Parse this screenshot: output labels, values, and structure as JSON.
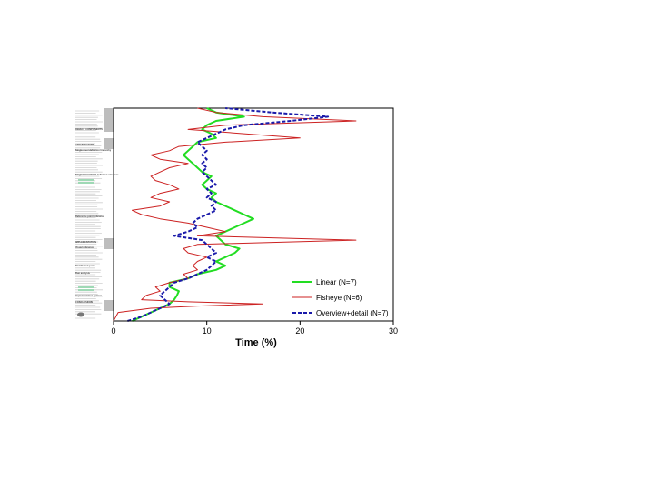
{
  "chart_data": {
    "type": "line",
    "title": "",
    "xlabel": "Time (%)",
    "ylabel": "",
    "xlim": [
      0,
      30
    ],
    "ylim": [
      0,
      100
    ],
    "x_ticks": [
      "0",
      "10",
      "20",
      "30"
    ],
    "orientation": "horizontal-profile",
    "grid": false,
    "legend": {
      "placement": "bottom-right",
      "entries": [
        "Linear (N=7)",
        "Fisheye (N=6)",
        "Overview+detail (N=7)"
      ]
    },
    "series": [
      {
        "name": "Linear (N=7)",
        "color": "#22dd22",
        "dash": "solid",
        "points": [
          [
            2,
            0
          ],
          [
            3,
            2
          ],
          [
            4,
            4
          ],
          [
            5,
            6
          ],
          [
            6,
            8
          ],
          [
            6.5,
            10
          ],
          [
            6.8,
            12
          ],
          [
            7,
            14
          ],
          [
            6,
            16
          ],
          [
            6,
            18
          ],
          [
            8,
            20
          ],
          [
            9,
            22
          ],
          [
            11,
            24
          ],
          [
            12,
            26
          ],
          [
            11,
            28
          ],
          [
            12,
            30
          ],
          [
            13,
            32
          ],
          [
            13.5,
            34
          ],
          [
            12,
            36
          ],
          [
            11.5,
            38
          ],
          [
            11,
            40
          ],
          [
            12,
            42
          ],
          [
            13,
            44
          ],
          [
            14,
            46
          ],
          [
            15,
            48
          ],
          [
            14,
            50
          ],
          [
            13,
            52
          ],
          [
            12,
            54
          ],
          [
            11,
            56
          ],
          [
            10.5,
            58
          ],
          [
            11,
            60
          ],
          [
            10,
            62
          ],
          [
            9.5,
            64
          ],
          [
            10,
            66
          ],
          [
            10.5,
            68
          ],
          [
            9.5,
            70
          ],
          [
            9,
            72
          ],
          [
            8.5,
            74
          ],
          [
            8,
            76
          ],
          [
            7.5,
            78
          ],
          [
            8,
            80
          ],
          [
            8.5,
            82
          ],
          [
            9,
            84
          ],
          [
            11,
            86
          ],
          [
            10.5,
            88
          ],
          [
            9.5,
            90
          ],
          [
            10,
            92
          ],
          [
            11,
            94
          ],
          [
            14,
            96
          ],
          [
            11,
            98
          ],
          [
            10,
            100
          ]
        ]
      },
      {
        "name": "Fisheye (N=6)",
        "color": "#cc2222",
        "dash": "solid",
        "points": [
          [
            0,
            0
          ],
          [
            0.5,
            4
          ],
          [
            4,
            6
          ],
          [
            9,
            7
          ],
          [
            16,
            8
          ],
          [
            8,
            9
          ],
          [
            3,
            10
          ],
          [
            3.5,
            12
          ],
          [
            5,
            14
          ],
          [
            4.5,
            16
          ],
          [
            6,
            18
          ],
          [
            8,
            20
          ],
          [
            7.5,
            22
          ],
          [
            9,
            24
          ],
          [
            8.5,
            26
          ],
          [
            9,
            28
          ],
          [
            10,
            30
          ],
          [
            8,
            32
          ],
          [
            7.5,
            34
          ],
          [
            9,
            36
          ],
          [
            26,
            38
          ],
          [
            9,
            40
          ],
          [
            12,
            42
          ],
          [
            10,
            44
          ],
          [
            8,
            46
          ],
          [
            5,
            48
          ],
          [
            3,
            50
          ],
          [
            2,
            52
          ],
          [
            5,
            54
          ],
          [
            6,
            56
          ],
          [
            4,
            58
          ],
          [
            5,
            60
          ],
          [
            7,
            62
          ],
          [
            6,
            64
          ],
          [
            4.5,
            66
          ],
          [
            4,
            68
          ],
          [
            5,
            70
          ],
          [
            6,
            72
          ],
          [
            8,
            74
          ],
          [
            5,
            76
          ],
          [
            4,
            78
          ],
          [
            6,
            80
          ],
          [
            7,
            82
          ],
          [
            12,
            84
          ],
          [
            20,
            86
          ],
          [
            14,
            88
          ],
          [
            8,
            90
          ],
          [
            12,
            92
          ],
          [
            26,
            94
          ],
          [
            16,
            96
          ],
          [
            11,
            98
          ],
          [
            9,
            100
          ]
        ]
      },
      {
        "name": "Overview+detail (N=7)",
        "color": "#1a1aaa",
        "dash": "dashed",
        "points": [
          [
            1.5,
            0
          ],
          [
            3,
            2
          ],
          [
            4,
            4
          ],
          [
            5,
            6
          ],
          [
            6,
            8
          ],
          [
            5.5,
            10
          ],
          [
            5,
            12
          ],
          [
            5.5,
            14
          ],
          [
            6,
            16
          ],
          [
            6.5,
            18
          ],
          [
            8,
            20
          ],
          [
            9,
            22
          ],
          [
            10,
            24
          ],
          [
            10.5,
            26
          ],
          [
            11,
            28
          ],
          [
            10,
            30
          ],
          [
            11,
            32
          ],
          [
            10.5,
            34
          ],
          [
            10,
            36
          ],
          [
            9.5,
            38
          ],
          [
            6.5,
            40
          ],
          [
            8,
            42
          ],
          [
            9,
            44
          ],
          [
            8.5,
            46
          ],
          [
            9,
            48
          ],
          [
            10,
            50
          ],
          [
            11,
            52
          ],
          [
            10.5,
            54
          ],
          [
            11,
            56
          ],
          [
            10,
            58
          ],
          [
            10.5,
            60
          ],
          [
            10,
            62
          ],
          [
            11,
            64
          ],
          [
            10.5,
            66
          ],
          [
            10,
            68
          ],
          [
            9.5,
            70
          ],
          [
            10,
            72
          ],
          [
            9.5,
            74
          ],
          [
            10,
            76
          ],
          [
            9.5,
            78
          ],
          [
            10,
            80
          ],
          [
            9.5,
            82
          ],
          [
            9,
            84
          ],
          [
            10,
            86
          ],
          [
            11,
            88
          ],
          [
            12,
            90
          ],
          [
            14,
            92
          ],
          [
            19,
            94
          ],
          [
            23,
            96
          ],
          [
            17,
            98
          ],
          [
            12,
            100
          ]
        ]
      }
    ]
  },
  "document_strip": {
    "headings": [
      "OBJECT COMPONENTS",
      "ARCHITECTURE",
      "Single-level definition hierarchy",
      "Single hierarchical definition structure",
      "Reference point reference",
      "IMPLEMENTATION",
      "Visual reference",
      "Distributed query",
      "Run analysis",
      "Implementation options",
      "CONCLUSIONS"
    ]
  }
}
